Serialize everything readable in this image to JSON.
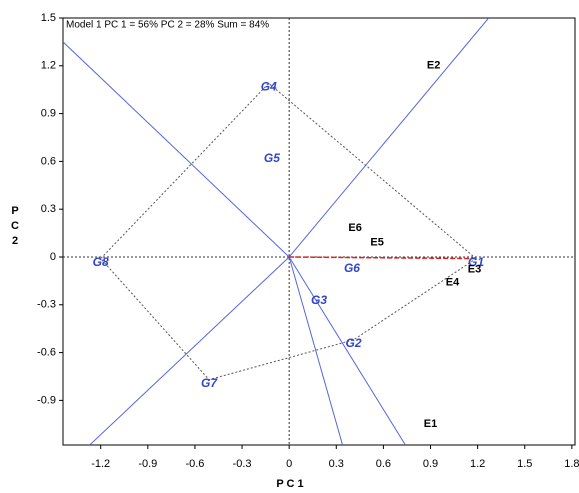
{
  "chart_data": {
    "type": "scatter",
    "title": "Model 1 PC 1 = 56% PC 2 = 28% Sum = 84%",
    "x_label": "P C 1",
    "y_label": "P C 2",
    "xlim": [
      -1.44,
      1.82
    ],
    "ylim": [
      -1.18,
      1.5
    ],
    "xticks": [
      -1.2,
      -0.9,
      -0.6,
      -0.3,
      0,
      0.3,
      0.6,
      0.9,
      1.2,
      1.5,
      1.8
    ],
    "yticks": [
      -0.9,
      -0.6,
      -0.3,
      0,
      0.3,
      0.6,
      0.9,
      1.2,
      1.5
    ],
    "genotypes": {
      "labels": [
        "G1",
        "G2",
        "G3",
        "G4",
        "G5",
        "G6",
        "G7",
        "G8"
      ],
      "x": [
        1.19,
        0.41,
        0.19,
        -0.13,
        -0.11,
        0.4,
        -0.51,
        -1.2
      ],
      "y": [
        -0.01,
        -0.52,
        -0.25,
        1.09,
        0.64,
        -0.05,
        -0.77,
        -0.01
      ],
      "color": "#3344cc"
    },
    "environments": {
      "labels": [
        "E1",
        "E2",
        "E3",
        "E4",
        "E5",
        "E6"
      ],
      "x": [
        0.9,
        0.92,
        1.18,
        1.04,
        0.56,
        0.42
      ],
      "y": [
        -1.05,
        1.2,
        -0.08,
        -0.16,
        0.09,
        0.18
      ],
      "color": "#000000"
    },
    "polygon": [
      0,
      3,
      7,
      6,
      1
    ],
    "rays": [
      [
        1.27,
        1.5
      ],
      [
        -1.27,
        -1.18
      ],
      [
        -1.44,
        1.35
      ],
      [
        0.34,
        -1.18
      ],
      [
        0.74,
        -1.18
      ]
    ],
    "ray_color": "#5566dd",
    "polygon_color": "#555555",
    "mean_axis_color": "#dd2222"
  }
}
